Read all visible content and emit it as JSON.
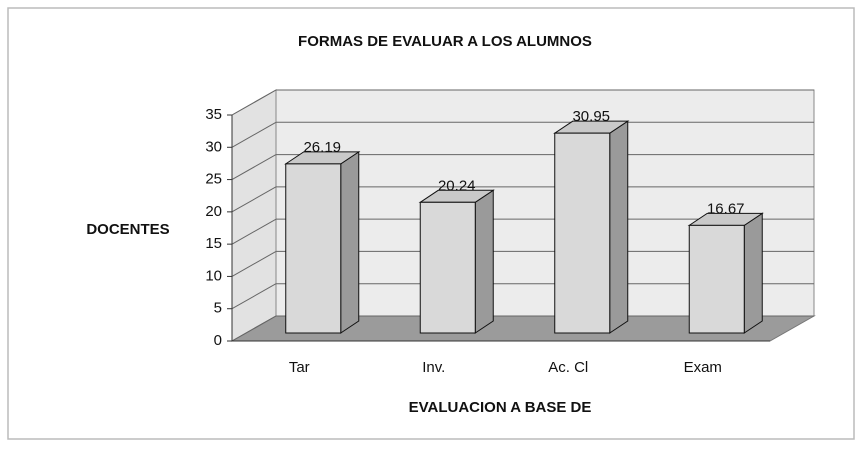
{
  "chart_data": {
    "type": "bar3d",
    "title": "FORMAS DE EVALUAR A LOS ALUMNOS",
    "x_label": "EVALUACION A BASE DE",
    "y_label": "DOCENTES",
    "categories": [
      "Tar",
      "Inv.",
      "Ac. Cl",
      "Exam"
    ],
    "values": [
      26.19,
      20.24,
      30.95,
      16.67
    ],
    "color": "#d9d9d9",
    "ylim": [
      0,
      35
    ],
    "yticks": [
      0,
      5,
      10,
      15,
      20,
      25,
      30,
      35
    ],
    "grid": true
  }
}
